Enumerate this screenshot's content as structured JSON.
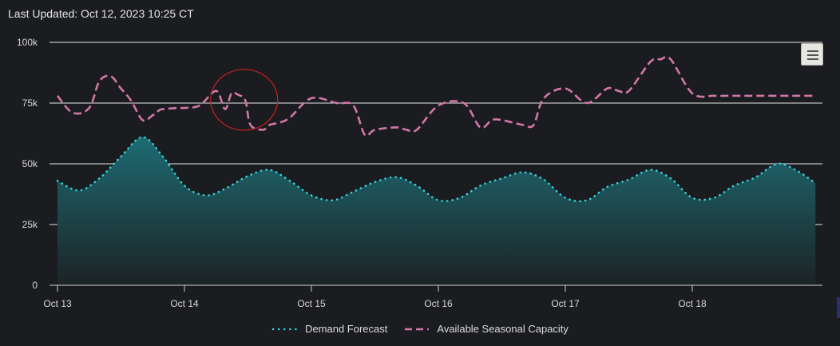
{
  "header": {
    "last_updated": "Last Updated: Oct 12, 2023 10:25 CT"
  },
  "colors": {
    "demand_line": "#33d6e0",
    "demand_fill_top": "#1d6b72",
    "demand_fill_bottom": "#1c2325",
    "capacity_line": "#d277a8",
    "grid": "#e6e6e6",
    "annotation": "#d02020"
  },
  "toolbar": {
    "menu_icon": "hamburger-menu-icon"
  },
  "chart_data": {
    "type": "area",
    "x_tick_labels": [
      "Oct 13",
      "Oct 14",
      "Oct 15",
      "Oct 16",
      "Oct 17",
      "Oct 18"
    ],
    "x_range_days": [
      0,
      6
    ],
    "y_ticks": [
      0,
      25000,
      50000,
      75000,
      100000
    ],
    "y_tick_labels": [
      "0",
      "25k",
      "50k",
      "75k",
      "100k"
    ],
    "ylim": [
      0,
      100000
    ],
    "grid": true,
    "legend_position": "bottom",
    "series": [
      {
        "name": "Demand Forecast",
        "style": "dotted-area",
        "x": [
          0,
          0.17,
          0.33,
          0.5,
          0.67,
          0.83,
          1.0,
          1.17,
          1.33,
          1.5,
          1.67,
          1.83,
          2.0,
          2.17,
          2.33,
          2.5,
          2.67,
          2.83,
          3.0,
          3.17,
          3.33,
          3.5,
          3.67,
          3.83,
          4.0,
          4.17,
          4.33,
          4.5,
          4.67,
          4.83,
          5.0,
          5.17,
          5.33,
          5.5,
          5.67,
          5.83,
          5.97
        ],
        "values": [
          43000,
          39000,
          44000,
          53000,
          61000,
          53000,
          41000,
          37000,
          40000,
          45000,
          47500,
          43000,
          37000,
          35000,
          38500,
          42500,
          44500,
          41000,
          35000,
          36000,
          41000,
          44000,
          46500,
          43500,
          36000,
          35000,
          40500,
          43500,
          47500,
          44000,
          36000,
          36000,
          41000,
          44500,
          50000,
          47000,
          42000
        ]
      },
      {
        "name": "Available Seasonal Capacity",
        "style": "dashed-line",
        "x": [
          0,
          0.12,
          0.25,
          0.33,
          0.42,
          0.5,
          0.58,
          0.67,
          0.75,
          0.8,
          0.83,
          0.95,
          1.0,
          1.12,
          1.25,
          1.32,
          1.37,
          1.42,
          1.48,
          1.52,
          1.62,
          1.67,
          1.75,
          1.83,
          2.0,
          2.2,
          2.33,
          2.42,
          2.5,
          2.67,
          2.75,
          2.83,
          3.0,
          3.2,
          3.33,
          3.42,
          3.5,
          3.67,
          3.75,
          3.83,
          4.0,
          4.17,
          4.33,
          4.42,
          4.5,
          4.67,
          4.75,
          4.83,
          5.0,
          5.17,
          5.25,
          5.33,
          5.42,
          5.5,
          5.67,
          5.75,
          5.83,
          5.97
        ],
        "values": [
          78000,
          71000,
          73000,
          84000,
          86000,
          81000,
          76000,
          68000,
          70000,
          72000,
          72500,
          73000,
          73000,
          74000,
          80000,
          72500,
          79000,
          78500,
          76000,
          66000,
          64000,
          66000,
          67000,
          69000,
          77000,
          75000,
          74000,
          62000,
          64000,
          65000,
          64000,
          64000,
          74000,
          75000,
          65000,
          68000,
          68000,
          66000,
          66000,
          77000,
          81000,
          75000,
          81000,
          80000,
          80000,
          92000,
          93000,
          93000,
          79000,
          78000,
          78000,
          78000,
          78000,
          78000,
          78000,
          78000,
          78000,
          78000
        ]
      }
    ],
    "annotation": {
      "type": "circle",
      "day": 1.47,
      "value": 77000,
      "note": ""
    }
  }
}
